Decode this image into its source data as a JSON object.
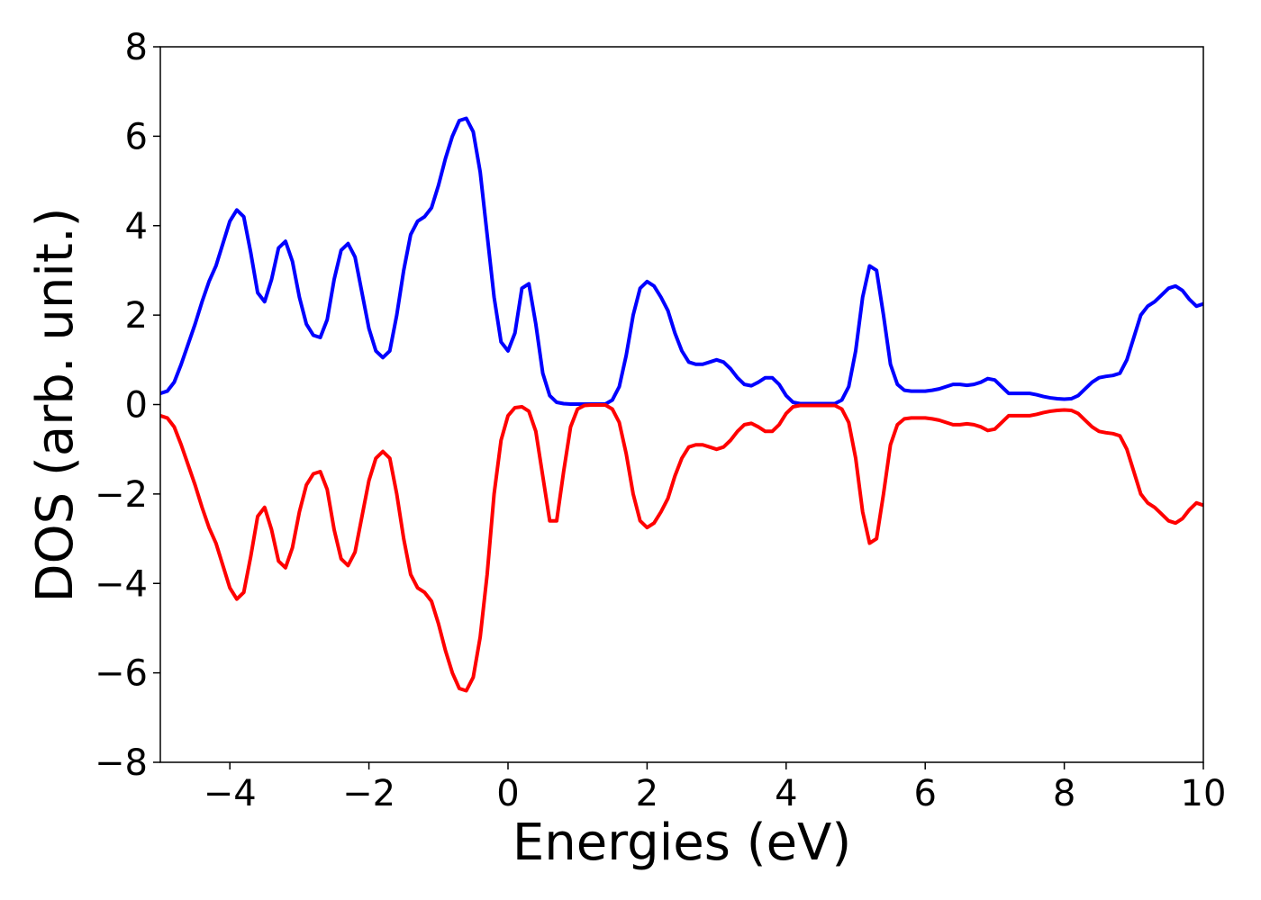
{
  "chart_data": {
    "type": "line",
    "xlabel": "Energies (eV)",
    "ylabel": "DOS (arb. unit.)",
    "xlim": [
      -5,
      10
    ],
    "ylim": [
      -8,
      8
    ],
    "xticks": [
      {
        "value": -4,
        "label": "−4"
      },
      {
        "value": -2,
        "label": "−2"
      },
      0,
      2,
      4,
      6,
      8,
      10
    ],
    "yticks": [
      {
        "value": -8,
        "label": "−8"
      },
      {
        "value": -6,
        "label": "−6"
      },
      {
        "value": -4,
        "label": "−4"
      },
      {
        "value": -2,
        "label": "−2"
      },
      0,
      2,
      4,
      6,
      8
    ],
    "x": [
      -5.0,
      -4.9,
      -4.8,
      -4.7,
      -4.6,
      -4.5,
      -4.4,
      -4.3,
      -4.2,
      -4.1,
      -4.0,
      -3.9,
      -3.8,
      -3.7,
      -3.6,
      -3.5,
      -3.4,
      -3.3,
      -3.2,
      -3.1,
      -3.0,
      -2.9,
      -2.8,
      -2.7,
      -2.6,
      -2.5,
      -2.4,
      -2.3,
      -2.2,
      -2.1,
      -2.0,
      -1.9,
      -1.8,
      -1.7,
      -1.6,
      -1.5,
      -1.4,
      -1.3,
      -1.2,
      -1.1,
      -1.0,
      -0.9,
      -0.8,
      -0.7,
      -0.6,
      -0.5,
      -0.4,
      -0.3,
      -0.2,
      -0.1,
      0.0,
      0.1,
      0.2,
      0.3,
      0.4,
      0.5,
      0.6,
      0.7,
      0.8,
      0.9,
      1.0,
      1.1,
      1.2,
      1.3,
      1.4,
      1.5,
      1.6,
      1.7,
      1.8,
      1.9,
      2.0,
      2.1,
      2.2,
      2.3,
      2.4,
      2.5,
      2.6,
      2.7,
      2.8,
      2.9,
      3.0,
      3.1,
      3.2,
      3.3,
      3.4,
      3.5,
      3.6,
      3.7,
      3.8,
      3.9,
      4.0,
      4.1,
      4.2,
      4.3,
      4.4,
      4.5,
      4.6,
      4.7,
      4.8,
      4.9,
      5.0,
      5.1,
      5.2,
      5.3,
      5.4,
      5.5,
      5.6,
      5.7,
      5.8,
      5.9,
      6.0,
      6.1,
      6.2,
      6.3,
      6.4,
      6.5,
      6.6,
      6.7,
      6.8,
      6.9,
      7.0,
      7.1,
      7.2,
      7.3,
      7.4,
      7.5,
      7.6,
      7.7,
      7.8,
      7.9,
      8.0,
      8.1,
      8.2,
      8.3,
      8.4,
      8.5,
      8.6,
      8.7,
      8.8,
      8.9,
      9.0,
      9.1,
      9.2,
      9.3,
      9.4,
      9.5,
      9.6,
      9.7,
      9.8,
      9.9,
      10.0
    ],
    "series": [
      {
        "color": "#0000ff",
        "values": [
          0.25,
          0.3,
          0.5,
          0.9,
          1.35,
          1.8,
          2.3,
          2.75,
          3.1,
          3.6,
          4.1,
          4.35,
          4.2,
          3.4,
          2.5,
          2.3,
          2.8,
          3.5,
          3.65,
          3.2,
          2.4,
          1.8,
          1.55,
          1.5,
          1.9,
          2.8,
          3.45,
          3.6,
          3.3,
          2.5,
          1.7,
          1.2,
          1.05,
          1.2,
          2.0,
          3.0,
          3.8,
          4.1,
          4.2,
          4.4,
          4.9,
          5.5,
          6.0,
          6.35,
          6.4,
          6.1,
          5.2,
          3.8,
          2.4,
          1.4,
          1.2,
          1.6,
          2.6,
          2.7,
          1.8,
          0.7,
          0.2,
          0.05,
          0.02,
          0.01,
          0.01,
          0.01,
          0.01,
          0.01,
          0.01,
          0.1,
          0.4,
          1.1,
          2.0,
          2.6,
          2.75,
          2.65,
          2.4,
          2.1,
          1.6,
          1.2,
          0.95,
          0.9,
          0.9,
          0.95,
          1.0,
          0.95,
          0.8,
          0.6,
          0.45,
          0.42,
          0.5,
          0.6,
          0.6,
          0.45,
          0.2,
          0.05,
          0.02,
          0.02,
          0.02,
          0.02,
          0.02,
          0.02,
          0.1,
          0.4,
          1.2,
          2.4,
          3.1,
          3.0,
          2.0,
          0.9,
          0.45,
          0.32,
          0.3,
          0.3,
          0.3,
          0.32,
          0.35,
          0.4,
          0.45,
          0.45,
          0.43,
          0.45,
          0.5,
          0.58,
          0.55,
          0.4,
          0.25,
          0.25,
          0.25,
          0.25,
          0.22,
          0.18,
          0.15,
          0.13,
          0.12,
          0.13,
          0.2,
          0.35,
          0.5,
          0.6,
          0.63,
          0.65,
          0.7,
          1.0,
          1.5,
          2.0,
          2.2,
          2.3,
          2.45,
          2.6,
          2.65,
          2.55,
          2.35,
          2.2,
          2.25
        ]
      },
      {
        "color": "#ff0000",
        "values": [
          -0.25,
          -0.3,
          -0.5,
          -0.9,
          -1.35,
          -1.8,
          -2.3,
          -2.75,
          -3.1,
          -3.6,
          -4.1,
          -4.35,
          -4.2,
          -3.4,
          -2.5,
          -2.3,
          -2.8,
          -3.5,
          -3.65,
          -3.2,
          -2.4,
          -1.8,
          -1.55,
          -1.5,
          -1.9,
          -2.8,
          -3.45,
          -3.6,
          -3.3,
          -2.5,
          -1.7,
          -1.2,
          -1.05,
          -1.2,
          -2.0,
          -3.0,
          -3.8,
          -4.1,
          -4.2,
          -4.4,
          -4.9,
          -5.5,
          -6.0,
          -6.35,
          -6.4,
          -6.1,
          -5.2,
          -3.8,
          -2.0,
          -0.8,
          -0.25,
          -0.07,
          -0.05,
          -0.15,
          -0.6,
          -1.6,
          -2.6,
          -2.6,
          -1.5,
          -0.5,
          -0.1,
          -0.02,
          -0.01,
          -0.01,
          -0.01,
          -0.1,
          -0.4,
          -1.1,
          -2.0,
          -2.6,
          -2.75,
          -2.65,
          -2.4,
          -2.1,
          -1.6,
          -1.2,
          -0.95,
          -0.9,
          -0.9,
          -0.95,
          -1.0,
          -0.95,
          -0.8,
          -0.6,
          -0.45,
          -0.42,
          -0.5,
          -0.6,
          -0.6,
          -0.45,
          -0.2,
          -0.05,
          -0.02,
          -0.02,
          -0.02,
          -0.02,
          -0.02,
          -0.02,
          -0.1,
          -0.4,
          -1.2,
          -2.4,
          -3.1,
          -3.0,
          -2.0,
          -0.9,
          -0.45,
          -0.32,
          -0.3,
          -0.3,
          -0.3,
          -0.32,
          -0.35,
          -0.4,
          -0.45,
          -0.45,
          -0.43,
          -0.45,
          -0.5,
          -0.58,
          -0.55,
          -0.4,
          -0.25,
          -0.25,
          -0.25,
          -0.25,
          -0.22,
          -0.18,
          -0.15,
          -0.13,
          -0.12,
          -0.13,
          -0.2,
          -0.35,
          -0.5,
          -0.6,
          -0.63,
          -0.65,
          -0.7,
          -1.0,
          -1.5,
          -2.0,
          -2.2,
          -2.3,
          -2.45,
          -2.6,
          -2.65,
          -2.55,
          -2.35,
          -2.2,
          -2.25
        ]
      }
    ]
  }
}
